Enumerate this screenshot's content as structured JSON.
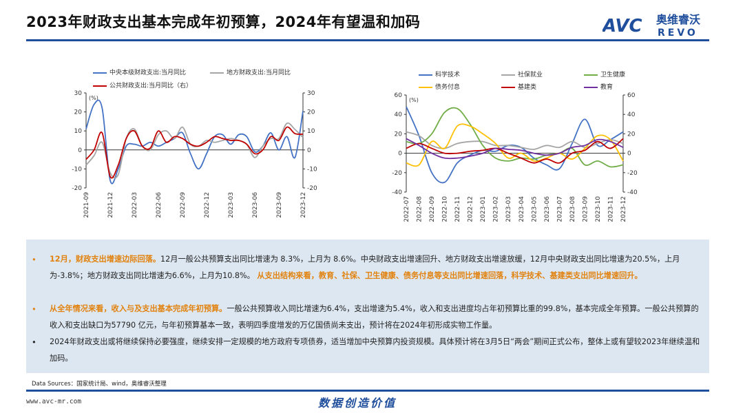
{
  "page": {
    "title": "2023年财政支出基本完成年初预算，2024年有望温和加码",
    "logo": {
      "text_top": "AVC",
      "text_cn": "奥维睿沃",
      "text_bottom": "REVO",
      "color": "#1f4e9c"
    },
    "footer": {
      "source": "Data Sources：国家统计局、wind，奥维睿沃整理",
      "site": "www.avc-mr.com",
      "slogan": "数据创造价值"
    }
  },
  "notes": [
    {
      "segments": [
        {
          "text": "12月，财政支出增速边际回落。",
          "hl": true
        },
        {
          "text": "12月一般公共预算支出同比增速为 8.3%，上月为 8.6%。中央财政支出增速回升、地方财政支出增速放缓，12月中央财政支出同比增速为20.5%，上月为-3.8%；地方财政支出同比增速为6.6%，上月为10.8%。 ",
          "hl": false
        },
        {
          "text": "从支出结构来看，教育、社保、卫生健康、债务付息等支出同比增速回落，科学技术、基建类支出同比增速回升。",
          "hl": true
        }
      ]
    },
    {
      "segments": [
        {
          "text": "从全年情况来看，收入与及支出基本完成年初预算。",
          "hl": true
        },
        {
          "text": "一般公共预算收入同比增速为6.4%，支出增速为5.4%，收入和支出进度均占年初预算比重的99.8%，基本完成全年预算。一般公共预算的收入和支出缺口为57790 亿元，与年初预算基本一致，表明四季度增发的万亿国债尚未支出，预计将在2024年初形成实物工作量。",
          "hl": false
        }
      ]
    },
    {
      "segments": [
        {
          "text": "2024年财政支出或将继续保持必要强度，继续安排一定规模的地方政府专项债券，适当增加中央预算内投资规模。具体预计将在3月5日“两会”期间正式公布，整体上或有望较2023年继续温和加码。",
          "hl": false
        }
      ]
    }
  ],
  "chart_data": [
    {
      "type": "line",
      "unit_label": "(%)",
      "x_ticks": [
        "2021-09",
        "2021-12",
        "2022-03",
        "2022-06",
        "2022-09",
        "2022-12",
        "2023-03",
        "2023-06",
        "2023-09",
        "2023-12"
      ],
      "x": [
        "2021-09",
        "2021-10",
        "2021-11",
        "2021-12",
        "2022-01",
        "2022-02",
        "2022-03",
        "2022-04",
        "2022-05",
        "2022-06",
        "2022-07",
        "2022-08",
        "2022-09",
        "2022-10",
        "2022-11",
        "2022-12",
        "2023-01",
        "2023-02",
        "2023-03",
        "2023-04",
        "2023-05",
        "2023-06",
        "2023-07",
        "2023-08",
        "2023-09",
        "2023-10",
        "2023-11",
        "2023-12"
      ],
      "ylim": [
        -20,
        30
      ],
      "y_ticks": [
        -20,
        -10,
        0,
        10,
        20,
        30
      ],
      "y2lim": [
        -20,
        30
      ],
      "y2_ticks": [
        -20,
        -10,
        0,
        10,
        20,
        30
      ],
      "series": [
        {
          "name": "中央本级财政支出:当月同比",
          "color": "#4472c4",
          "values": [
            11,
            24,
            22,
            -16,
            -10,
            2,
            3,
            2,
            4,
            2,
            4,
            6,
            9,
            -2,
            -10,
            -2,
            7,
            8,
            3,
            8,
            7,
            -1,
            2,
            9,
            0,
            7,
            -4,
            20.5
          ]
        },
        {
          "name": "地方财政支出:当月同比",
          "color": "#a5a5a5",
          "values": [
            -8,
            -3,
            4,
            -12,
            -13,
            6,
            11,
            2,
            0,
            8,
            10,
            6,
            12,
            3,
            2,
            5,
            4,
            5,
            6,
            5,
            3,
            -4,
            2,
            6,
            6,
            14,
            10.8,
            6.6
          ]
        },
        {
          "name": "公共财政支出:当月同比（右）",
          "color": "#c00000",
          "axis": "right",
          "values": [
            -5,
            0,
            9,
            -14,
            -8,
            6,
            10,
            2,
            1,
            10,
            4,
            7,
            6,
            3,
            2,
            4,
            7,
            6,
            5,
            5,
            3,
            -2,
            0,
            7,
            5,
            12,
            8.6,
            8.3
          ]
        }
      ]
    },
    {
      "type": "line",
      "unit_label": "(%)",
      "x": [
        "2022-07",
        "2022-08",
        "2022-09",
        "2022-10",
        "2022-11",
        "2022-12",
        "2023-01",
        "2023-02",
        "2023-03",
        "2023-04",
        "2023-05",
        "2023-06",
        "2023-07",
        "2023-08",
        "2023-09",
        "2023-10",
        "2023-11",
        "2023-12"
      ],
      "ylim": [
        -40,
        60
      ],
      "y_ticks": [
        -40,
        -20,
        0,
        20,
        40,
        60
      ],
      "y2lim": [
        -40,
        60
      ],
      "y2_ticks": [
        -40,
        -20,
        0,
        20,
        40,
        60
      ],
      "series": [
        {
          "name": "科学技术",
          "color": "#4472c4",
          "values": [
            48,
            18,
            -20,
            -30,
            -10,
            -2,
            3,
            2,
            8,
            6,
            -5,
            -12,
            -16,
            10,
            35,
            8,
            14,
            22
          ]
        },
        {
          "name": "社保就业",
          "color": "#a5a5a5",
          "values": [
            22,
            18,
            8,
            5,
            10,
            12,
            12,
            8,
            8,
            6,
            4,
            8,
            6,
            12,
            6,
            10,
            14,
            10
          ]
        },
        {
          "name": "卫生健康",
          "color": "#70ad47",
          "values": [
            12,
            10,
            20,
            42,
            46,
            30,
            8,
            -5,
            -8,
            -5,
            -6,
            -2,
            0,
            5,
            -12,
            -8,
            -14,
            -12
          ]
        },
        {
          "name": "债务付息",
          "color": "#ffc000",
          "values": [
            -10,
            -12,
            12,
            5,
            28,
            28,
            20,
            10,
            -5,
            0,
            -8,
            -5,
            0,
            -6,
            5,
            18,
            14,
            -8
          ]
        },
        {
          "name": "基建类",
          "color": "#c00000",
          "values": [
            5,
            10,
            5,
            0,
            0,
            2,
            3,
            5,
            0,
            -5,
            -10,
            -6,
            -10,
            0,
            3,
            12,
            5,
            15
          ]
        },
        {
          "name": "教育",
          "color": "#7030a0",
          "values": [
            15,
            8,
            0,
            -5,
            -5,
            -3,
            0,
            5,
            4,
            3,
            0,
            -2,
            0,
            6,
            8,
            14,
            12,
            6
          ]
        }
      ]
    }
  ]
}
